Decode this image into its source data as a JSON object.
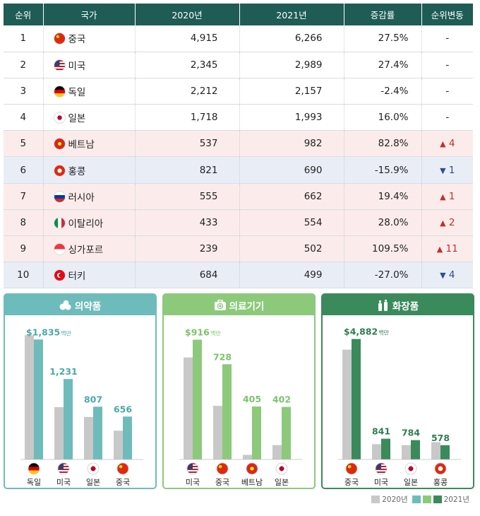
{
  "table": {
    "headers": [
      "순위",
      "국가",
      "2020년",
      "2021년",
      "증감률",
      "순위변동"
    ],
    "rows": [
      {
        "rank": "1",
        "country": "중국",
        "flag": "cn",
        "y2020": "4,915",
        "y2021": "6,266",
        "change": "27.5%",
        "move_dir": "",
        "move": "-"
      },
      {
        "rank": "2",
        "country": "미국",
        "flag": "us",
        "y2020": "2,345",
        "y2021": "2,989",
        "change": "27.4%",
        "move_dir": "",
        "move": "-"
      },
      {
        "rank": "3",
        "country": "독일",
        "flag": "de",
        "y2020": "2,212",
        "y2021": "2,157",
        "change": "-2.4%",
        "move_dir": "",
        "move": "-"
      },
      {
        "rank": "4",
        "country": "일본",
        "flag": "jp",
        "y2020": "1,718",
        "y2021": "1,993",
        "change": "16.0%",
        "move_dir": "",
        "move": "-"
      },
      {
        "rank": "5",
        "country": "베트남",
        "flag": "vn",
        "y2020": "537",
        "y2021": "982",
        "change": "82.8%",
        "move_dir": "up",
        "move": "4"
      },
      {
        "rank": "6",
        "country": "홍콩",
        "flag": "hk",
        "y2020": "821",
        "y2021": "690",
        "change": "-15.9%",
        "move_dir": "down",
        "move": "1"
      },
      {
        "rank": "7",
        "country": "러시아",
        "flag": "ru",
        "y2020": "555",
        "y2021": "662",
        "change": "19.4%",
        "move_dir": "up",
        "move": "1"
      },
      {
        "rank": "8",
        "country": "이탈리아",
        "flag": "it",
        "y2020": "433",
        "y2021": "554",
        "change": "28.0%",
        "move_dir": "up",
        "move": "2"
      },
      {
        "rank": "9",
        "country": "싱가포르",
        "flag": "sg",
        "y2020": "239",
        "y2021": "502",
        "change": "109.5%",
        "move_dir": "up",
        "move": "11"
      },
      {
        "rank": "10",
        "country": "터키",
        "flag": "tr",
        "y2020": "684",
        "y2021": "499",
        "change": "-27.0%",
        "move_dir": "down",
        "move": "4"
      }
    ]
  },
  "colors": {
    "header_bg": "#1e5c55",
    "gray_bar": "#c8c8c8",
    "pharma": "#6dbcbb",
    "medical": "#8cc97b",
    "cosmetic": "#3a8a5b",
    "up": "#c0302c",
    "down": "#2a4f8f"
  },
  "chart_data": [
    {
      "type": "bar",
      "title": "의약품",
      "icon": "pills-icon",
      "categories": [
        "독일",
        "미국",
        "일본",
        "중국"
      ],
      "flags": [
        "de",
        "us",
        "jp",
        "cn"
      ],
      "series": [
        {
          "name": "2020년",
          "values": [
            1900,
            800,
            650,
            440
          ]
        },
        {
          "name": "2021년",
          "values": [
            1835,
            1231,
            807,
            656
          ]
        }
      ],
      "data_labels": [
        "$1,835",
        "1,231",
        "807",
        "656"
      ],
      "unit_suffix": "백만",
      "ylim": [
        0,
        2000
      ]
    },
    {
      "type": "bar",
      "title": "의료기기",
      "icon": "medical-kit-icon",
      "categories": [
        "미국",
        "중국",
        "베트남",
        "일본"
      ],
      "flags": [
        "us",
        "cn",
        "vn",
        "jp"
      ],
      "series": [
        {
          "name": "2020년",
          "values": [
            780,
            410,
            35,
            110
          ]
        },
        {
          "name": "2021년",
          "values": [
            916,
            728,
            405,
            402
          ]
        }
      ],
      "data_labels": [
        "$916",
        "728",
        "405",
        "402"
      ],
      "unit_suffix": "백만",
      "ylim": [
        0,
        1000
      ]
    },
    {
      "type": "bar",
      "title": "화장품",
      "icon": "cosmetics-icon",
      "categories": [
        "중국",
        "미국",
        "일본",
        "홍콩"
      ],
      "flags": [
        "cn",
        "us",
        "jp",
        "hk"
      ],
      "series": [
        {
          "name": "2020년",
          "values": [
            4450,
            620,
            580,
            700
          ]
        },
        {
          "name": "2021년",
          "values": [
            4882,
            841,
            784,
            578
          ]
        }
      ],
      "data_labels": [
        "$4,882",
        "841",
        "784",
        "578"
      ],
      "unit_suffix": "백만",
      "ylim": [
        0,
        5300
      ]
    }
  ],
  "legend": {
    "label_2020": "2020년",
    "label_2021": "2021년"
  }
}
